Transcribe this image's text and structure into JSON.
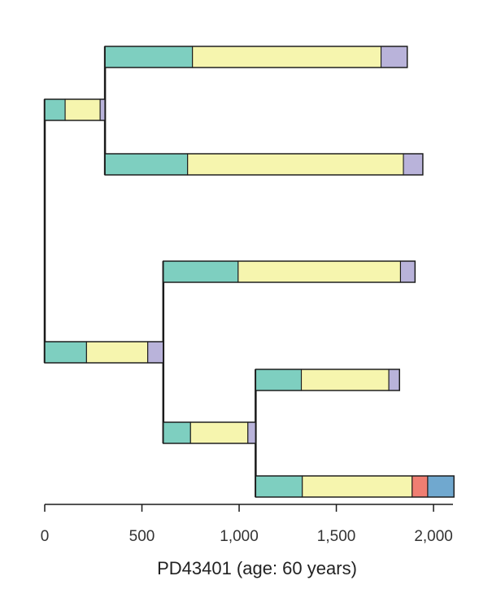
{
  "colors": {
    "teal": "#7ecfc0",
    "yellow": "#f6f5ae",
    "lavender": "#b9b3da",
    "red": "#ef7e72",
    "blue": "#70a8cf",
    "line": "#1a1a1a"
  },
  "chart_data": {
    "type": "tree",
    "xlabel": "PD43401 (age: 60 years)",
    "xlim": [
      0,
      2100
    ],
    "xticks": [
      {
        "value": 0,
        "label": "0"
      },
      {
        "value": 500,
        "label": "500"
      },
      {
        "value": 1000,
        "label": "1,000"
      },
      {
        "value": 1500,
        "label": "1,500"
      },
      {
        "value": 2000,
        "label": "2,000"
      }
    ],
    "branches": [
      {
        "name": "branch-1",
        "row": 0,
        "segments": [
          {
            "from": 310,
            "to": 760,
            "color": "teal"
          },
          {
            "from": 760,
            "to": 1730,
            "color": "yellow"
          },
          {
            "from": 1730,
            "to": 1865,
            "color": "lavender"
          }
        ]
      },
      {
        "name": "branch-2",
        "row": 1,
        "segments": [
          {
            "from": 0,
            "to": 105,
            "color": "teal"
          },
          {
            "from": 105,
            "to": 285,
            "color": "yellow"
          },
          {
            "from": 285,
            "to": 310,
            "color": "lavender"
          }
        ]
      },
      {
        "name": "branch-3",
        "row": 2,
        "segments": [
          {
            "from": 310,
            "to": 735,
            "color": "teal"
          },
          {
            "from": 735,
            "to": 1845,
            "color": "yellow"
          },
          {
            "from": 1845,
            "to": 1945,
            "color": "lavender"
          }
        ]
      },
      {
        "name": "branch-4",
        "row": 3,
        "segments": [
          {
            "from": 610,
            "to": 995,
            "color": "teal"
          },
          {
            "from": 995,
            "to": 1830,
            "color": "yellow"
          },
          {
            "from": 1830,
            "to": 1905,
            "color": "lavender"
          }
        ]
      },
      {
        "name": "branch-5",
        "row": 4,
        "segments": [
          {
            "from": 0,
            "to": 215,
            "color": "teal"
          },
          {
            "from": 215,
            "to": 530,
            "color": "yellow"
          },
          {
            "from": 530,
            "to": 610,
            "color": "lavender"
          }
        ]
      },
      {
        "name": "branch-6",
        "row": 5,
        "segments": [
          {
            "from": 1085,
            "to": 1320,
            "color": "teal"
          },
          {
            "from": 1320,
            "to": 1770,
            "color": "yellow"
          },
          {
            "from": 1770,
            "to": 1825,
            "color": "lavender"
          }
        ]
      },
      {
        "name": "branch-7",
        "row": 6,
        "segments": [
          {
            "from": 610,
            "to": 750,
            "color": "teal"
          },
          {
            "from": 750,
            "to": 1045,
            "color": "yellow"
          },
          {
            "from": 1045,
            "to": 1085,
            "color": "lavender"
          }
        ]
      },
      {
        "name": "branch-8",
        "row": 7,
        "segments": [
          {
            "from": 1085,
            "to": 1325,
            "color": "teal"
          },
          {
            "from": 1325,
            "to": 1890,
            "color": "yellow"
          },
          {
            "from": 1890,
            "to": 1970,
            "color": "red"
          },
          {
            "from": 1970,
            "to": 2105,
            "color": "blue"
          }
        ]
      }
    ],
    "connectors": [
      {
        "x": 0,
        "from_row": 1,
        "to_row": 4
      },
      {
        "x": 310,
        "from_row": 0,
        "to_row": 2
      },
      {
        "x": 610,
        "from_row": 3,
        "to_row": 6
      },
      {
        "x": 1085,
        "from_row": 5,
        "to_row": 7
      }
    ]
  }
}
